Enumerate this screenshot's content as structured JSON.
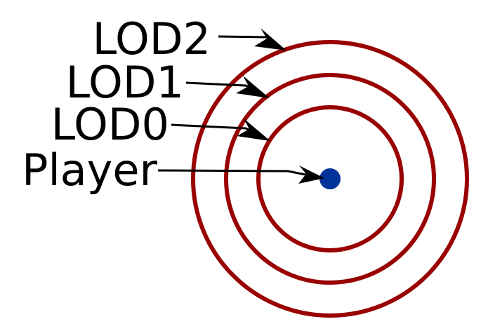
{
  "diagram": {
    "labels": {
      "lod2": "LOD2",
      "lod1": "LOD1",
      "lod0": "LOD0",
      "player": "Player"
    },
    "colors": {
      "ring": "#990000",
      "player": "#003399",
      "text": "#000000",
      "arrow": "#000000",
      "background": "#ffffff"
    }
  }
}
